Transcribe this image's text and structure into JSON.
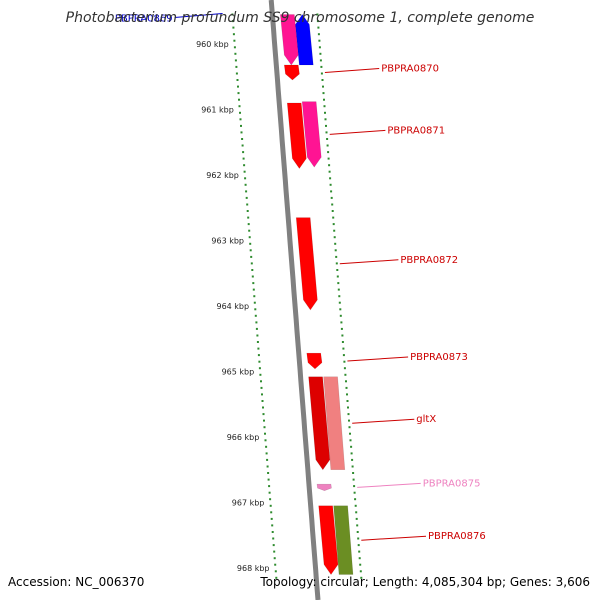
{
  "title": "Photobacterium profundum SS9 chromosome 1, complete genome",
  "footer": {
    "accession_text": "Accession: NC_006370",
    "summary_text": "Topology: circular; Length: 4,085,304 bp; Genes: 3,606"
  },
  "colors": {
    "backbone": "#808080",
    "tick_marks": "#2e8b2e",
    "forward_cds": "#ff0000",
    "forward_cds_alt": "#ff1493",
    "reverse_cds": "#0000ff",
    "pseudo_cds": "#f08080",
    "rna": "#6b8e23",
    "faded_label": "#ee82c0"
  },
  "scale": {
    "unit": "kbp",
    "ticks": [
      {
        "label": "960 kbp",
        "value": 960
      },
      {
        "label": "961 kbp",
        "value": 961
      },
      {
        "label": "962 kbp",
        "value": 962
      },
      {
        "label": "963 kbp",
        "value": 963
      },
      {
        "label": "964 kbp",
        "value": 964
      },
      {
        "label": "965 kbp",
        "value": 965
      },
      {
        "label": "966 kbp",
        "value": 966
      },
      {
        "label": "967 kbp",
        "value": 967
      },
      {
        "label": "968 kbp",
        "value": 968
      }
    ]
  },
  "genes": [
    {
      "label": "PBPRA0869",
      "start": 959.55,
      "end": 960.32,
      "track": 1,
      "color": "#0000ff",
      "label_color": "#0000cc",
      "side": "left",
      "strand": "-"
    },
    {
      "label": "",
      "start": 959.55,
      "end": 960.32,
      "track": 0,
      "color": "#ff1493",
      "label_color": "",
      "side": "none",
      "strand": "+"
    },
    {
      "label": "PBPRA0870",
      "start": 960.32,
      "end": 960.55,
      "track": 0,
      "color": "#ff0000",
      "label_color": "#cc0000",
      "side": "right",
      "strand": "+"
    },
    {
      "label": "",
      "start": 960.9,
      "end": 961.9,
      "track": 0,
      "color": "#ff0000",
      "label_color": "",
      "side": "none",
      "strand": "+"
    },
    {
      "label": "PBPRA0871",
      "start": 960.88,
      "end": 961.88,
      "track": 1,
      "color": "#ff1493",
      "label_color": "#cc0000",
      "side": "right",
      "strand": "+"
    },
    {
      "label": "PBPRA0872",
      "start": 962.65,
      "end": 964.06,
      "track": 0,
      "color": "#ff0000",
      "label_color": "#cc0000",
      "side": "right",
      "strand": "+"
    },
    {
      "label": "PBPRA0873",
      "start": 964.72,
      "end": 964.96,
      "track": 0,
      "color": "#ff0000",
      "label_color": "#cc0000",
      "side": "right",
      "strand": "+"
    },
    {
      "label": "gltX",
      "start": 965.08,
      "end": 966.5,
      "track": 0,
      "color": "#dd0000",
      "label_color": "#cc0000",
      "side": "right",
      "strand": "+"
    },
    {
      "label": "",
      "start": 965.08,
      "end": 966.5,
      "track": 1,
      "color": "#f08080",
      "label_color": "",
      "side": "none",
      "strand": "none"
    },
    {
      "label": "PBPRA0875",
      "start": 966.72,
      "end": 966.82,
      "track": 0,
      "color": "#ee82c0",
      "label_color": "#ee82c0",
      "side": "right",
      "strand": "+"
    },
    {
      "label": "PBPRA0876",
      "start": 967.05,
      "end": 968.1,
      "track": 0,
      "color": "#ff0000",
      "label_color": "#cc0000",
      "side": "right",
      "strand": "+"
    },
    {
      "label": "",
      "start": 967.05,
      "end": 968.1,
      "track": 1,
      "color": "#6b8e23",
      "label_color": "",
      "side": "none",
      "strand": "none"
    }
  ]
}
